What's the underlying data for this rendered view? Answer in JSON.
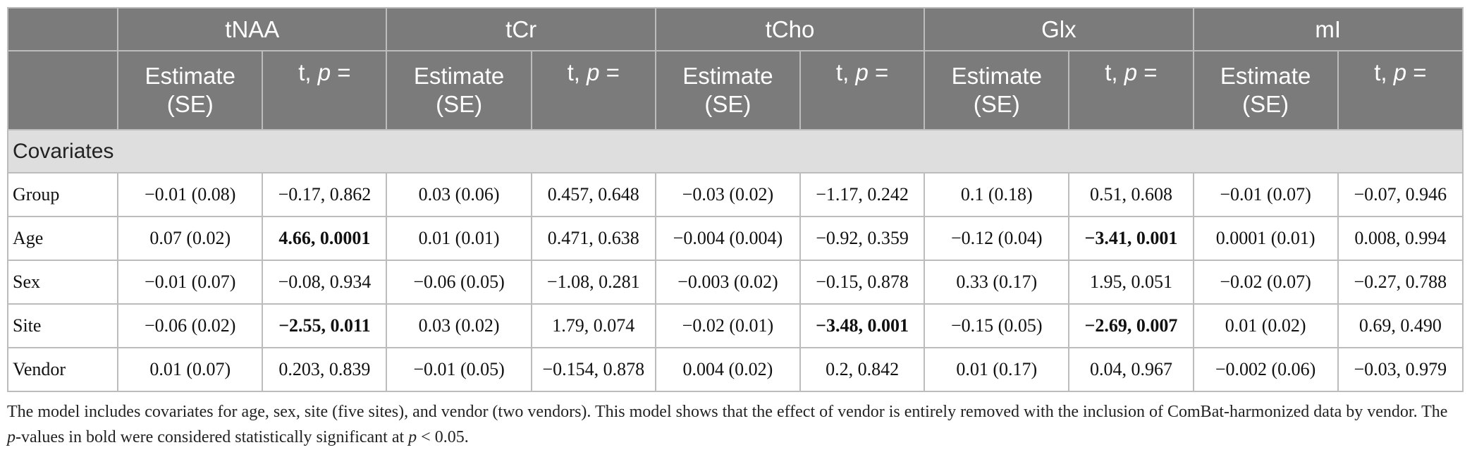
{
  "header": {
    "groups": [
      "tNAA",
      "tCr",
      "tCho",
      "Glx",
      "mI"
    ],
    "sub_estimate_line1": "Estimate",
    "sub_estimate_line2": "(SE)",
    "sub_t": "t, ",
    "sub_p": "p",
    "sub_eq": " ="
  },
  "section_label": "Covariates",
  "rows": [
    {
      "label": "Group",
      "cells": [
        "−0.01 (0.08)",
        "−0.17, 0.862",
        "0.03 (0.06)",
        "0.457, 0.648",
        "−0.03 (0.02)",
        "−1.17, 0.242",
        "0.1 (0.18)",
        "0.51, 0.608",
        "−0.01 (0.07)",
        "−0.07, 0.946"
      ]
    },
    {
      "label": "Age",
      "cells": [
        "0.07 (0.02)",
        "4.66, 0.0001",
        "0.01 (0.01)",
        "0.471, 0.638",
        "−0.004 (0.004)",
        "−0.92, 0.359",
        "−0.12 (0.04)",
        "−3.41, 0.001",
        "0.0001 (0.01)",
        "0.008, 0.994"
      ]
    },
    {
      "label": "Sex",
      "cells": [
        "−0.01 (0.07)",
        "−0.08, 0.934",
        "−0.06 (0.05)",
        "−1.08, 0.281",
        "−0.003 (0.02)",
        "−0.15, 0.878",
        "0.33 (0.17)",
        "1.95, 0.051",
        "−0.02 (0.07)",
        "−0.27, 0.788"
      ]
    },
    {
      "label": "Site",
      "cells": [
        "−0.06 (0.02)",
        "−2.55, 0.011",
        "0.03 (0.02)",
        "1.79, 0.074",
        "−0.02 (0.01)",
        "−3.48, 0.001",
        "−0.15 (0.05)",
        "−2.69, 0.007",
        "0.01 (0.02)",
        "0.69, 0.490"
      ]
    },
    {
      "label": "Vendor",
      "cells": [
        "0.01 (0.07)",
        "0.203, 0.839",
        "−0.01 (0.05)",
        "−0.154, 0.878",
        "0.004 (0.02)",
        "0.2, 0.842",
        "0.01 (0.17)",
        "0.04, 0.967",
        "−0.002 (0.06)",
        "−0.03, 0.979"
      ]
    }
  ],
  "bold_cells": [
    [
      1,
      1
    ],
    [
      1,
      7
    ],
    [
      3,
      1
    ],
    [
      3,
      5
    ],
    [
      3,
      7
    ]
  ],
  "footnote": {
    "part1": "The model includes covariates for age, sex, site (five sites), and vendor (two vendors). This model shows that the effect of vendor is entirely removed with the inclusion of ComBat-harmonized data by vendor. The ",
    "p1": "p",
    "part2": "-values in bold were considered statistically significant at ",
    "p2": "p",
    "part3": " < 0.05."
  }
}
